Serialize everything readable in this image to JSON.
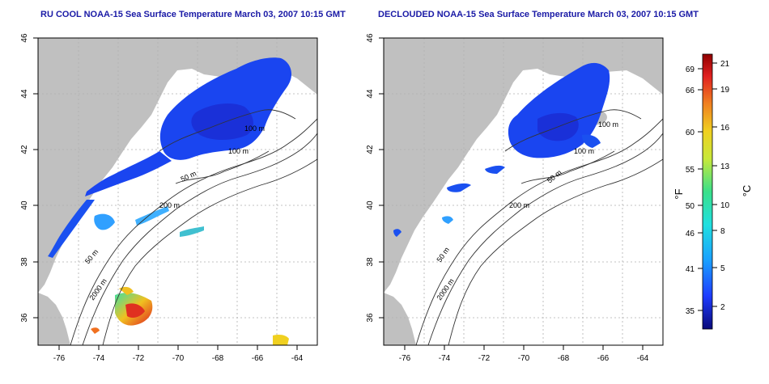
{
  "panels": [
    {
      "title": "RU COOL NOAA-15 Sea Surface Temperature March 03, 2007 10:15 GMT",
      "lon_ticks": [
        -76,
        -74,
        -72,
        -70,
        -68,
        -66,
        -64
      ],
      "lat_ticks": [
        36,
        38,
        40,
        42,
        44,
        46
      ],
      "contours": [
        "50 m",
        "100 m",
        "200 m",
        "2000 m"
      ]
    },
    {
      "title": "DECLOUDED NOAA-15 Sea Surface Temperature March 03, 2007 10:15 GMT",
      "lon_ticks": [
        -76,
        -74,
        -72,
        -70,
        -68,
        -66,
        -64
      ],
      "lat_ticks": [
        36,
        38,
        40,
        42,
        44,
        46
      ],
      "contours": [
        "50 m",
        "100 m",
        "200 m",
        "2000 m"
      ]
    }
  ],
  "colorbar": {
    "left_unit": "°F",
    "right_unit": "°C",
    "f_ticks": [
      "69",
      "66",
      "60",
      "55",
      "50",
      "46",
      "41",
      "35"
    ],
    "c_ticks": [
      "21",
      "19",
      "16",
      "13",
      "10",
      "8",
      "5",
      "2"
    ]
  },
  "colors": {
    "land": "#c0c0c0",
    "ocean": "#ffffff",
    "title": "#1a1aa6",
    "sst_cold": "#1a3cff",
    "sst_warm": "#d01818"
  }
}
